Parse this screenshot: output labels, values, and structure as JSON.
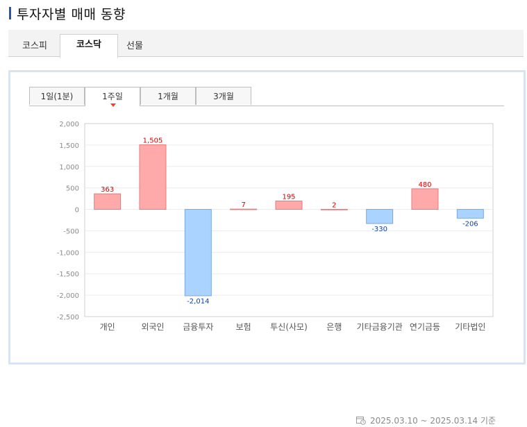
{
  "page": {
    "title": "투자자별 매매 동향"
  },
  "market_tabs": [
    {
      "label": "코스피",
      "active": false
    },
    {
      "label": "코스닥",
      "active": true
    },
    {
      "label": "선물",
      "active": false
    }
  ],
  "period_tabs": [
    {
      "label": "1일(1분)",
      "active": false
    },
    {
      "label": "1주일",
      "active": true
    },
    {
      "label": "1개월",
      "active": false
    },
    {
      "label": "3개월",
      "active": false
    }
  ],
  "date_range": "2025.03.10 ~ 2025.03.14 기준",
  "colors": {
    "positive_fill": "#ffaaaa",
    "positive_stroke": "#e87878",
    "negative_fill": "#aad4ff",
    "negative_stroke": "#7aa6e0",
    "positive_label": "#d00000",
    "negative_label": "#1040b0"
  },
  "chart_data": {
    "type": "bar",
    "categories": [
      "개인",
      "외국인",
      "금융투자",
      "보험",
      "투신(사모)",
      "은행",
      "기타금융기관",
      "연기금등",
      "기타법인"
    ],
    "values": [
      363,
      1505,
      -2014,
      7,
      195,
      2,
      -330,
      480,
      -206
    ],
    "value_labels": [
      "363",
      "1,505",
      "-2,014",
      "7",
      "195",
      "2",
      "-330",
      "480",
      "-206"
    ],
    "ylim": [
      -2500,
      2000
    ],
    "yticks": [
      2000,
      1500,
      1000,
      500,
      0,
      -500,
      -1000,
      -1500,
      -2000,
      -2500
    ],
    "ytick_labels": [
      "2,000",
      "1,500",
      "1,000",
      "500",
      "0",
      "-500",
      "-1,000",
      "-1,500",
      "-2,000",
      "-2,500"
    ],
    "grid": true
  }
}
